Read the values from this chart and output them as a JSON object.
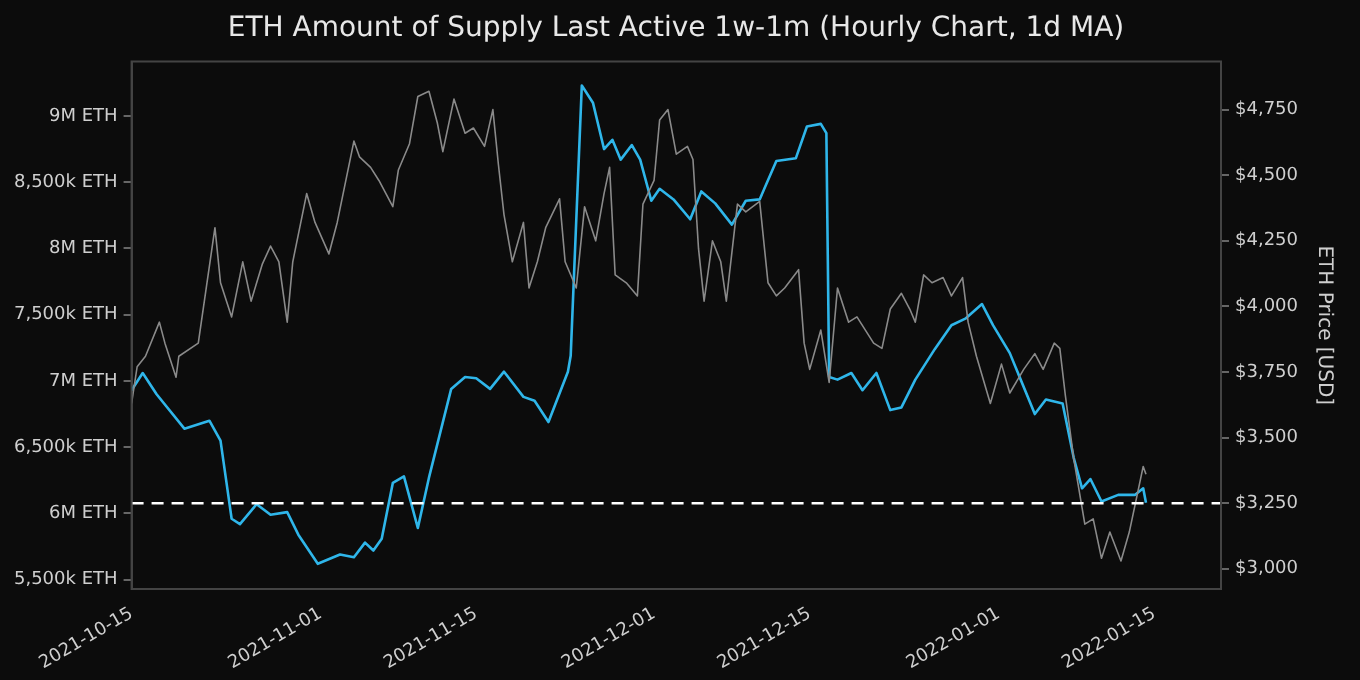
{
  "chart_data": {
    "type": "line",
    "title": "ETH Amount of Supply Last Active 1w-1m (Hourly Chart, 1d MA)",
    "y2label": "ETH Price [USD]",
    "marker": "none",
    "line_style": "solid",
    "xlim": [
      "2021-10-15",
      "2022-01-21"
    ],
    "xticks": [
      "2021-10-15",
      "2021-11-01",
      "2021-11-15",
      "2021-12-01",
      "2021-12-15",
      "2022-01-01",
      "2022-01-15"
    ],
    "ylim": [
      5430000,
      9410000
    ],
    "yticks": [
      {
        "value": 5500000,
        "label": "5,500k ETH"
      },
      {
        "value": 6000000,
        "label": "6M ETH"
      },
      {
        "value": 6500000,
        "label": "6,500k ETH"
      },
      {
        "value": 7000000,
        "label": "7M ETH"
      },
      {
        "value": 7500000,
        "label": "7,500k ETH"
      },
      {
        "value": 8000000,
        "label": "8M ETH"
      },
      {
        "value": 8500000,
        "label": "8,500k ETH"
      },
      {
        "value": 9000000,
        "label": "9M ETH"
      }
    ],
    "y2lim": [
      2923,
      4933
    ],
    "y2ticks": [
      {
        "value": 3000,
        "label": "$3,000"
      },
      {
        "value": 3250,
        "label": "$3,250"
      },
      {
        "value": 3500,
        "label": "$3,500"
      },
      {
        "value": 3750,
        "label": "$3,750"
      },
      {
        "value": 4000,
        "label": "$4,000"
      },
      {
        "value": 4250,
        "label": "$4,250"
      },
      {
        "value": 4500,
        "label": "$4,500"
      },
      {
        "value": 4750,
        "label": "$4,750"
      }
    ],
    "ref_lines": [
      {
        "axis": "y2",
        "value": 3250,
        "label": null,
        "color": "#ffffff",
        "line_style": "dashed"
      }
    ],
    "series": [
      {
        "color": "#8a8a8a",
        "axis": "y2",
        "x": [
          "2021-10-15T00:00",
          "2021-10-15T12:00",
          "2021-10-16T06:00",
          "2021-10-17T12:00",
          "2021-10-18T00:00",
          "2021-10-19T00:00",
          "2021-10-19T06:00",
          "2021-10-21T00:00",
          "2021-10-21T18:00",
          "2021-10-22T12:00",
          "2021-10-23T00:00",
          "2021-10-24T00:00",
          "2021-10-25T00:00",
          "2021-10-25T18:00",
          "2021-10-26T18:00",
          "2021-10-27T12:00",
          "2021-10-28T06:00",
          "2021-10-29T00:00",
          "2021-10-29T12:00",
          "2021-10-30T18:00",
          "2021-10-31T12:00",
          "2021-11-01T18:00",
          "2021-11-02T12:00",
          "2021-11-04T00:00",
          "2021-11-04T12:00",
          "2021-11-05T12:00",
          "2021-11-06T06:00",
          "2021-11-07T12:00",
          "2021-11-08T00:00",
          "2021-11-09T00:00",
          "2021-11-09T18:00",
          "2021-11-10T18:00",
          "2021-11-11T12:00",
          "2021-11-12T00:00",
          "2021-11-13T00:00",
          "2021-11-14T00:00",
          "2021-11-14T18:00",
          "2021-11-15T18:00",
          "2021-11-16T12:00",
          "2021-11-17T00:00",
          "2021-11-17T12:00",
          "2021-11-18T06:00",
          "2021-11-19T06:00",
          "2021-11-19T18:00",
          "2021-11-20T12:00",
          "2021-11-21T06:00",
          "2021-11-22T12:00",
          "2021-11-23T00:00",
          "2021-11-24T00:00",
          "2021-11-24T18:00",
          "2021-11-25T18:00",
          "2021-11-26T12:00",
          "2021-11-27T00:00",
          "2021-11-27T12:00",
          "2021-11-28T12:00",
          "2021-11-29T12:00",
          "2021-11-30T00:00",
          "2021-12-01T00:00",
          "2021-12-01T12:00",
          "2021-12-02T06:00",
          "2021-12-03T00:00",
          "2021-12-04T00:00",
          "2021-12-04T12:00",
          "2021-12-05T00:00",
          "2021-12-05T12:00",
          "2021-12-06T06:00",
          "2021-12-07T00:00",
          "2021-12-07T12:00",
          "2021-12-08T12:00",
          "2021-12-09T06:00",
          "2021-12-10T12:00",
          "2021-12-11T06:00",
          "2021-12-12T00:00",
          "2021-12-12T18:00",
          "2021-12-14T00:00",
          "2021-12-14T12:00",
          "2021-12-15T00:00",
          "2021-12-16T00:00",
          "2021-12-16T18:00",
          "2021-12-17T12:00",
          "2021-12-18T12:00",
          "2021-12-19T06:00",
          "2021-12-20T18:00",
          "2021-12-21T12:00",
          "2021-12-22T06:00",
          "2021-12-23T06:00",
          "2021-12-24T00:00",
          "2021-12-24T12:00",
          "2021-12-25T06:00",
          "2021-12-26T00:00",
          "2021-12-27T00:00",
          "2021-12-27T18:00",
          "2021-12-28T18:00",
          "2021-12-29T06:00",
          "2021-12-30T00:00",
          "2021-12-31T06:00",
          "2022-01-01T06:00",
          "2022-01-02T00:00",
          "2022-01-03T06:00",
          "2022-01-04T06:00",
          "2022-01-05T00:00",
          "2022-01-06T00:00",
          "2022-01-06T12:00",
          "2022-01-07T00:00",
          "2022-01-07T18:00",
          "2022-01-08T18:00",
          "2022-01-09T12:00",
          "2022-01-10T06:00",
          "2022-01-11T00:00",
          "2022-01-12T00:00",
          "2022-01-12T18:00",
          "2022-01-13T06:00",
          "2022-01-14T00:00",
          "2022-01-14T06:00"
        ],
        "values": [
          3630,
          3770,
          3810,
          3940,
          3860,
          3730,
          3810,
          3860,
          4080,
          4300,
          4090,
          3960,
          4170,
          4020,
          4160,
          4230,
          4170,
          3940,
          4170,
          4430,
          4320,
          4200,
          4320,
          4630,
          4570,
          4530,
          4480,
          4380,
          4520,
          4620,
          4800,
          4820,
          4700,
          4590,
          4790,
          4660,
          4680,
          4610,
          4750,
          4540,
          4350,
          4170,
          4320,
          4070,
          4170,
          4300,
          4410,
          4170,
          4070,
          4380,
          4250,
          4430,
          4530,
          4120,
          4090,
          4040,
          4390,
          4480,
          4710,
          4750,
          4580,
          4610,
          4560,
          4220,
          4020,
          4250,
          4170,
          4020,
          4390,
          4360,
          4400,
          4090,
          4040,
          4070,
          4140,
          3860,
          3760,
          3910,
          3710,
          4070,
          3940,
          3960,
          3860,
          3840,
          3990,
          4050,
          3990,
          3940,
          4120,
          4090,
          4110,
          4040,
          4110,
          3940,
          3810,
          3630,
          3780,
          3670,
          3760,
          3820,
          3760,
          3860,
          3840,
          3660,
          3420,
          3170,
          3190,
          3040,
          3140,
          3030,
          3140,
          3240,
          3390,
          3360
        ]
      },
      {
        "color": "#2fb6ea",
        "x": [
          "2021-10-15T00:00",
          "2021-10-16T00:00",
          "2021-10-17T06:00",
          "2021-10-19T18:00",
          "2021-10-22T00:00",
          "2021-10-23T00:00",
          "2021-10-24T00:00",
          "2021-10-24T18:00",
          "2021-10-26T06:00",
          "2021-10-27T12:00",
          "2021-10-29T00:00",
          "2021-10-30T00:00",
          "2021-10-31T18:00",
          "2021-11-02T18:00",
          "2021-11-04T00:00",
          "2021-11-05T00:00",
          "2021-11-05T18:00",
          "2021-11-06T12:00",
          "2021-11-07T12:00",
          "2021-11-08T12:00",
          "2021-11-09T18:00",
          "2021-11-10T18:00",
          "2021-11-12T18:00",
          "2021-11-14T00:00",
          "2021-11-15T00:00",
          "2021-11-16T06:00",
          "2021-11-17T12:00",
          "2021-11-19T06:00",
          "2021-11-20T06:00",
          "2021-11-21T12:00",
          "2021-11-23T06:00",
          "2021-11-23T12:00",
          "2021-11-24T12:00",
          "2021-11-25T12:00",
          "2021-11-26T12:00",
          "2021-11-27T06:00",
          "2021-11-28T00:00",
          "2021-11-29T00:00",
          "2021-11-29T18:00",
          "2021-11-30T18:00",
          "2021-12-01T12:00",
          "2021-12-02T18:00",
          "2021-12-04T06:00",
          "2021-12-05T06:00",
          "2021-12-06T12:00",
          "2021-12-08T00:00",
          "2021-12-09T06:00",
          "2021-12-10T12:00",
          "2021-12-12T00:00",
          "2021-12-13T18:00",
          "2021-12-14T18:00",
          "2021-12-16T00:00",
          "2021-12-16T12:00",
          "2021-12-16T18:00",
          "2021-12-17T12:00",
          "2021-12-18T18:00",
          "2021-12-19T18:00",
          "2021-12-21T00:00",
          "2021-12-22T06:00",
          "2021-12-23T06:00",
          "2021-12-24T12:00",
          "2021-12-26T06:00",
          "2021-12-27T18:00",
          "2021-12-29T00:00",
          "2021-12-30T12:00",
          "2021-12-31T12:00",
          "2022-01-02T00:00",
          "2022-01-04T06:00",
          "2022-01-05T06:00",
          "2022-01-06T18:00",
          "2022-01-07T18:00",
          "2022-01-08T12:00",
          "2022-01-09T06:00",
          "2022-01-10T06:00",
          "2022-01-11T18:00",
          "2022-01-13T06:00",
          "2022-01-14T00:00",
          "2022-01-14T06:00"
        ],
        "values": [
          6930000,
          7060000,
          6900000,
          6640000,
          6700000,
          6550000,
          5960000,
          5920000,
          6070000,
          5990000,
          6010000,
          5840000,
          5620000,
          5690000,
          5670000,
          5780000,
          5720000,
          5810000,
          6230000,
          6280000,
          5890000,
          6270000,
          6940000,
          7030000,
          7020000,
          6940000,
          7070000,
          6880000,
          6850000,
          6690000,
          7070000,
          7190000,
          9230000,
          9100000,
          8750000,
          8820000,
          8670000,
          8780000,
          8670000,
          8360000,
          8450000,
          8370000,
          8220000,
          8430000,
          8340000,
          8180000,
          8360000,
          8370000,
          8660000,
          8680000,
          8920000,
          8940000,
          8870000,
          7030000,
          7010000,
          7060000,
          6930000,
          7060000,
          6780000,
          6800000,
          7010000,
          7240000,
          7420000,
          7470000,
          7580000,
          7420000,
          7210000,
          6750000,
          6860000,
          6830000,
          6420000,
          6190000,
          6260000,
          6090000,
          6140000,
          6140000,
          6190000,
          6080000
        ]
      }
    ]
  }
}
